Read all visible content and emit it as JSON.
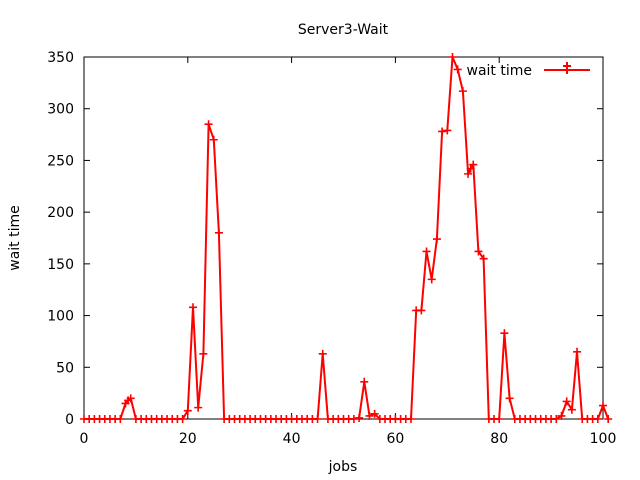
{
  "chart_data": {
    "type": "line",
    "title": "Server3-Wait",
    "xlabel": "jobs",
    "ylabel": "wait time",
    "xlim": [
      0,
      100
    ],
    "ylim": [
      0,
      350
    ],
    "xticks": [
      0,
      20,
      40,
      60,
      80,
      100
    ],
    "yticks": [
      0,
      50,
      100,
      150,
      200,
      250,
      300,
      350
    ],
    "grid": false,
    "legend_position": "top-right",
    "series": [
      {
        "name": "wait time",
        "color": "#ff0000",
        "marker": "plus",
        "points": [
          [
            0,
            0
          ],
          [
            1,
            0
          ],
          [
            2,
            0
          ],
          [
            3,
            0
          ],
          [
            4,
            0
          ],
          [
            5,
            0
          ],
          [
            6,
            0
          ],
          [
            7,
            0
          ],
          [
            8,
            15
          ],
          [
            8.5,
            18
          ],
          [
            9,
            20
          ],
          [
            10,
            0
          ],
          [
            11,
            0
          ],
          [
            12,
            0
          ],
          [
            13,
            0
          ],
          [
            14,
            0
          ],
          [
            15,
            0
          ],
          [
            16,
            0
          ],
          [
            17,
            0
          ],
          [
            18,
            0
          ],
          [
            19,
            0
          ],
          [
            20,
            8
          ],
          [
            21,
            108
          ],
          [
            22,
            11
          ],
          [
            23,
            63
          ],
          [
            24,
            285
          ],
          [
            25,
            270
          ],
          [
            26,
            180
          ],
          [
            27,
            0
          ],
          [
            28,
            0
          ],
          [
            29,
            0
          ],
          [
            30,
            0
          ],
          [
            31,
            0
          ],
          [
            32,
            0
          ],
          [
            33,
            0
          ],
          [
            34,
            0
          ],
          [
            35,
            0
          ],
          [
            36,
            0
          ],
          [
            37,
            0
          ],
          [
            38,
            0
          ],
          [
            39,
            0
          ],
          [
            40,
            0
          ],
          [
            41,
            0
          ],
          [
            42,
            0
          ],
          [
            43,
            0
          ],
          [
            44,
            0
          ],
          [
            45,
            0
          ],
          [
            46,
            63
          ],
          [
            47,
            0
          ],
          [
            48,
            0
          ],
          [
            49,
            0
          ],
          [
            50,
            0
          ],
          [
            51,
            0
          ],
          [
            52,
            0
          ],
          [
            53,
            1
          ],
          [
            54,
            36
          ],
          [
            55,
            3
          ],
          [
            56,
            5
          ],
          [
            57,
            0
          ],
          [
            58,
            0
          ],
          [
            59,
            0
          ],
          [
            60,
            0
          ],
          [
            61,
            0
          ],
          [
            62,
            0
          ],
          [
            63,
            0
          ],
          [
            64,
            105
          ],
          [
            65,
            105
          ],
          [
            66,
            162
          ],
          [
            67,
            135
          ],
          [
            68,
            174
          ],
          [
            69,
            278
          ],
          [
            70,
            279
          ],
          [
            71,
            350
          ],
          [
            72,
            338
          ],
          [
            73,
            317
          ],
          [
            74,
            237
          ],
          [
            74.5,
            242
          ],
          [
            75,
            246
          ],
          [
            76,
            162
          ],
          [
            77,
            155
          ],
          [
            78,
            0
          ],
          [
            79,
            0
          ],
          [
            80,
            0
          ],
          [
            81,
            83
          ],
          [
            82,
            20
          ],
          [
            83,
            0
          ],
          [
            84,
            0
          ],
          [
            85,
            0
          ],
          [
            86,
            0
          ],
          [
            87,
            0
          ],
          [
            88,
            0
          ],
          [
            89,
            0
          ],
          [
            90,
            0
          ],
          [
            91,
            0
          ],
          [
            92,
            3
          ],
          [
            93,
            17
          ],
          [
            94,
            9
          ],
          [
            95,
            65
          ],
          [
            96,
            0
          ],
          [
            97,
            0
          ],
          [
            98,
            0
          ],
          [
            99,
            0
          ],
          [
            100,
            13
          ],
          [
            101,
            0
          ]
        ]
      }
    ]
  }
}
